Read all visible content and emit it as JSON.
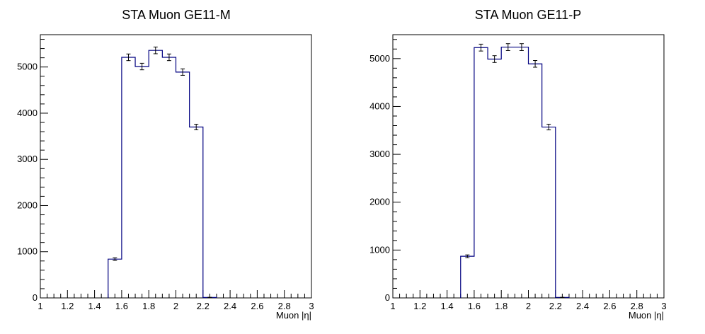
{
  "chart_data": [
    {
      "type": "histogram",
      "title": "STA Muon GE11-M",
      "xlabel": "Muon |η|",
      "ylabel": "",
      "xlim": [
        1,
        3
      ],
      "ylim": [
        0,
        5700
      ],
      "x_ticks": [
        "1",
        "1.2",
        "1.4",
        "1.6",
        "1.8",
        "2",
        "2.2",
        "2.4",
        "2.6",
        "2.8",
        "3"
      ],
      "y_ticks": [
        "0",
        "1000",
        "2000",
        "3000",
        "4000",
        "5000"
      ],
      "bin_edges": [
        1.5,
        1.6,
        1.7,
        1.8,
        1.9,
        2.0,
        2.1,
        2.2,
        2.3
      ],
      "values": [
        840,
        5210,
        5010,
        5360,
        5210,
        4890,
        3700,
        10
      ],
      "errors": [
        29,
        72,
        71,
        73,
        72,
        70,
        61,
        3
      ]
    },
    {
      "type": "histogram",
      "title": "STA Muon GE11-P",
      "xlabel": "Muon |η|",
      "ylabel": "",
      "xlim": [
        1,
        3
      ],
      "ylim": [
        0,
        5500
      ],
      "x_ticks": [
        "1",
        "1.2",
        "1.4",
        "1.6",
        "1.8",
        "2",
        "2.2",
        "2.4",
        "2.6",
        "2.8",
        "3"
      ],
      "y_ticks": [
        "0",
        "1000",
        "2000",
        "3000",
        "4000",
        "5000"
      ],
      "bin_edges": [
        1.5,
        1.6,
        1.7,
        1.8,
        1.9,
        2.0,
        2.1,
        2.2,
        2.3
      ],
      "values": [
        870,
        5230,
        4990,
        5240,
        5240,
        4890,
        3570,
        10
      ],
      "errors": [
        29,
        72,
        71,
        72,
        72,
        70,
        60,
        3
      ]
    }
  ]
}
